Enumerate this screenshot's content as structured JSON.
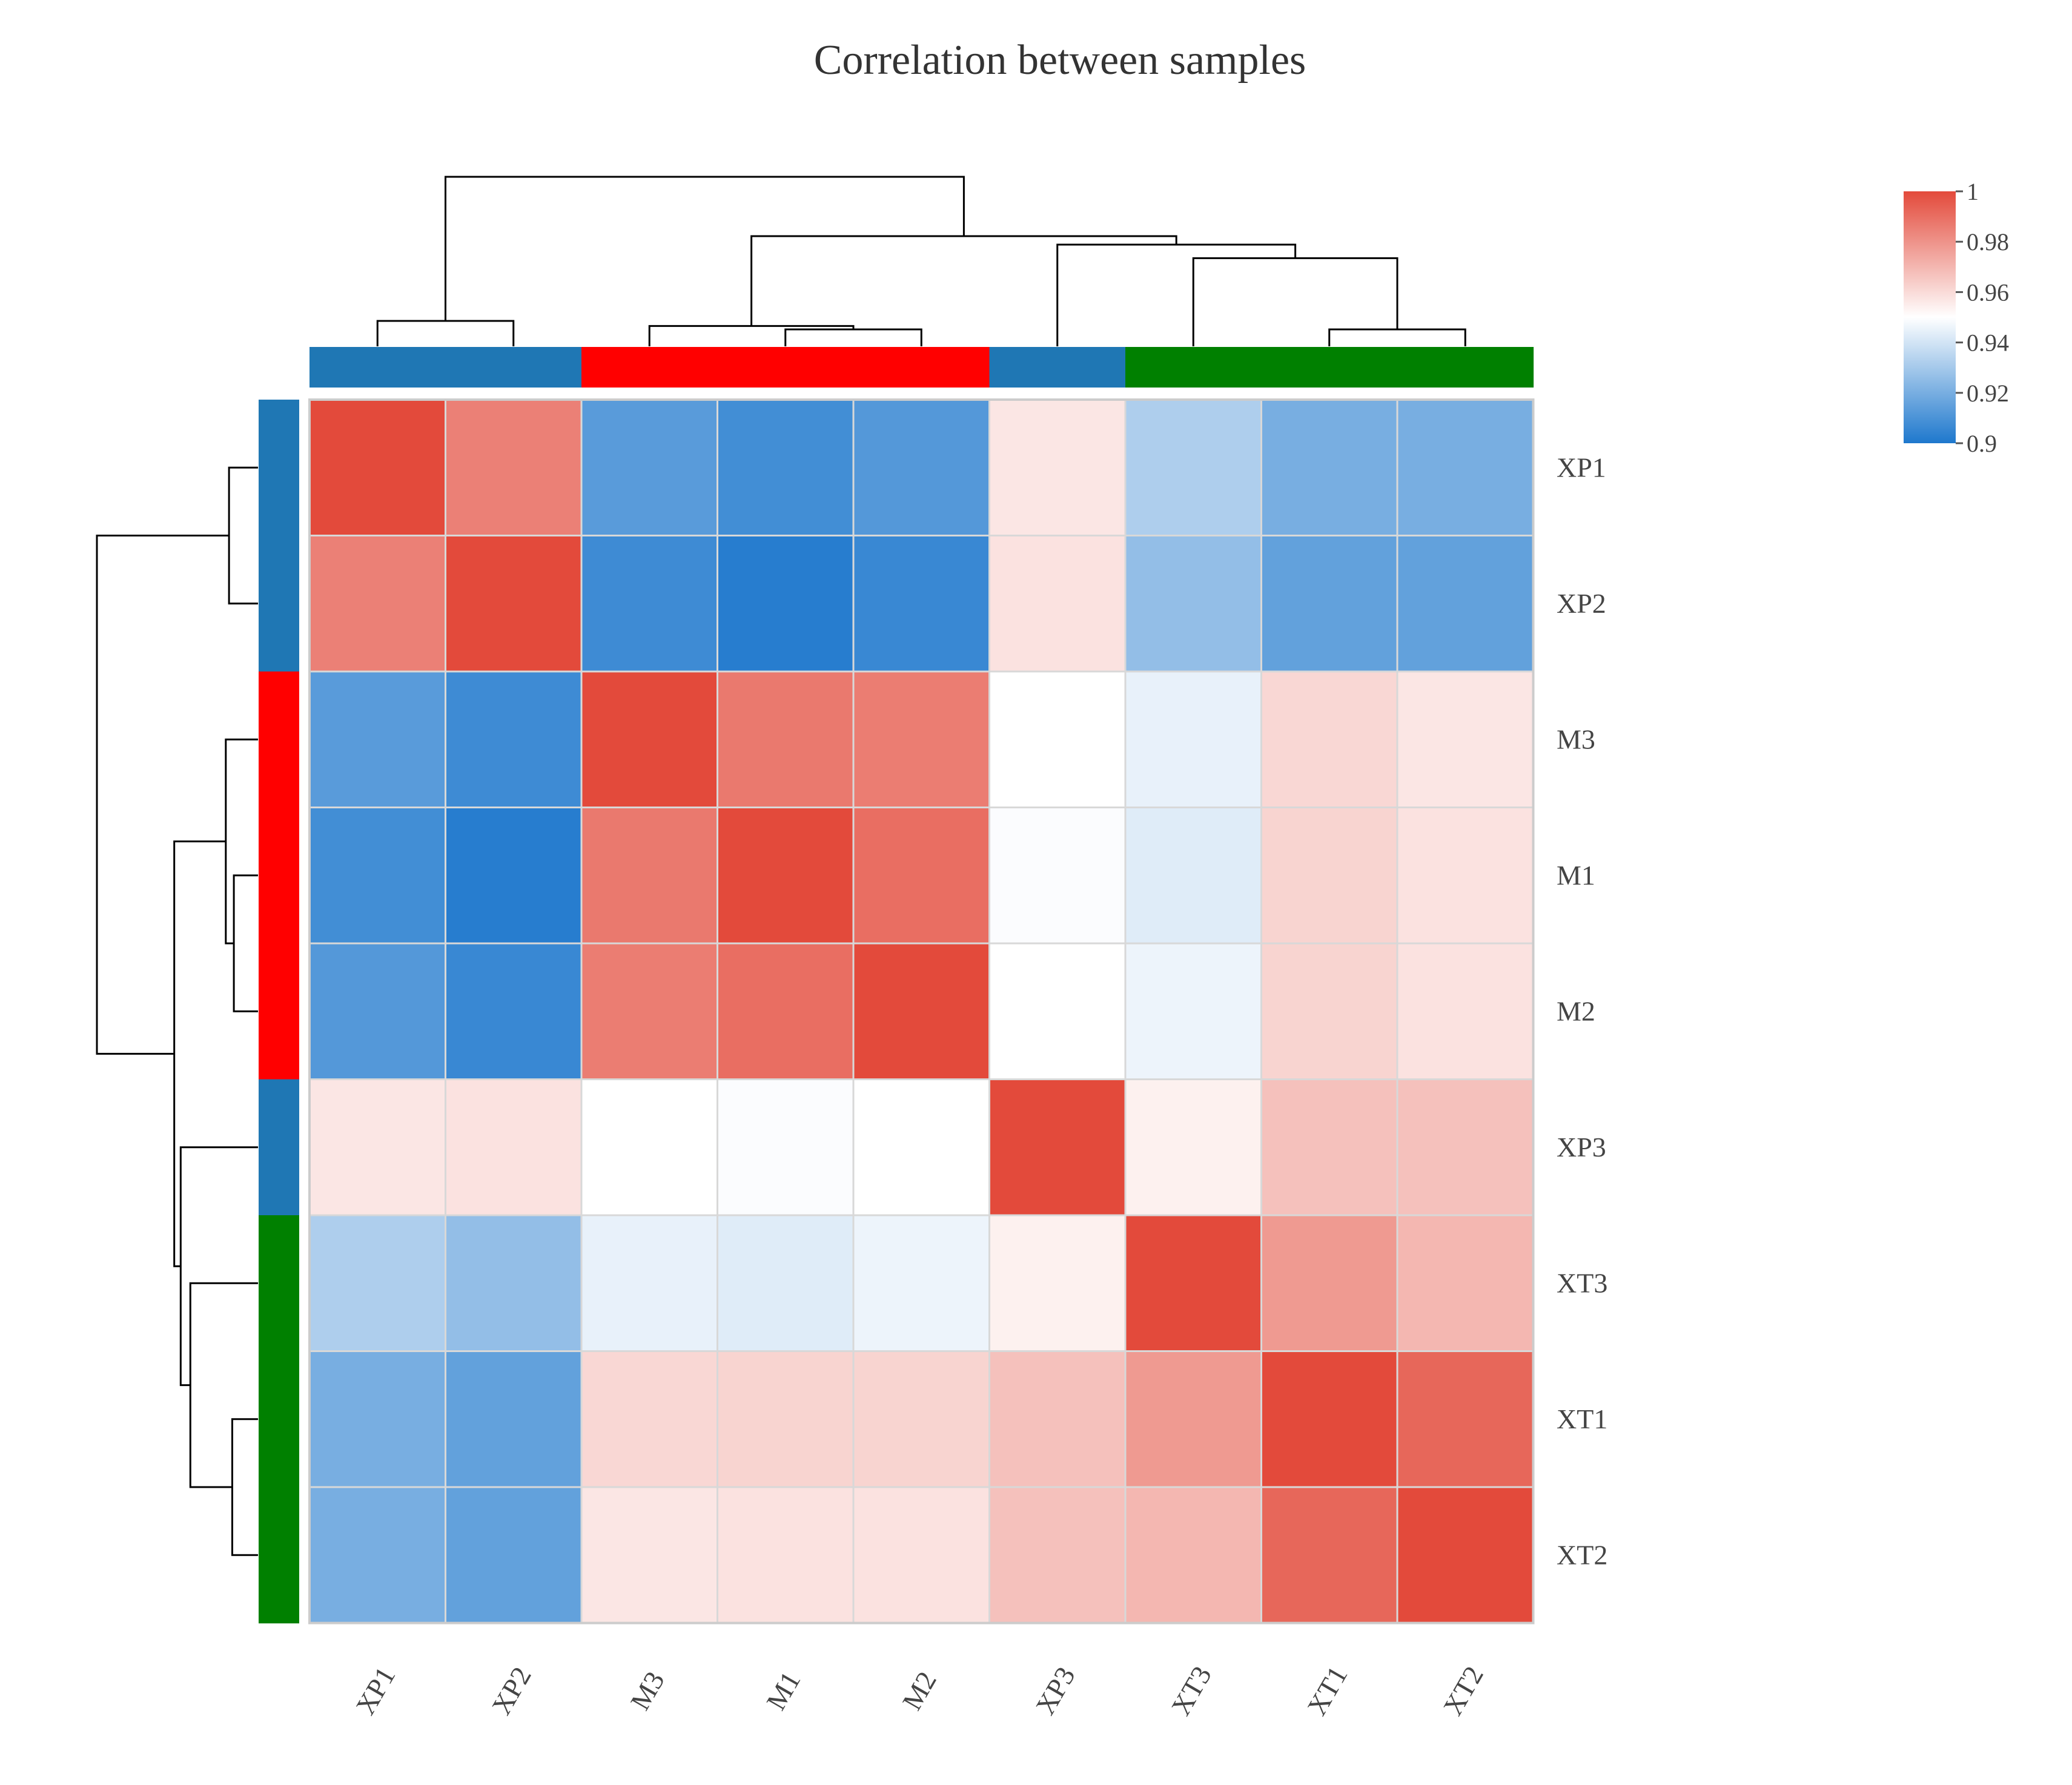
{
  "chart_data": {
    "type": "heatmap",
    "title": "Correlation between samples",
    "xlabel": "",
    "ylabel": "",
    "rows": [
      "XP1",
      "XP2",
      "M3",
      "M1",
      "M2",
      "XP3",
      "XT3",
      "XT1",
      "XT2"
    ],
    "columns": [
      "XP1",
      "XP2",
      "M3",
      "M1",
      "M2",
      "XP3",
      "XT3",
      "XT1",
      "XT2"
    ],
    "values": [
      [
        1.0,
        0.985,
        0.913,
        0.908,
        0.912,
        0.957,
        0.932,
        0.92,
        0.92
      ],
      [
        0.985,
        1.0,
        0.907,
        0.902,
        0.906,
        0.958,
        0.926,
        0.915,
        0.915
      ],
      [
        0.913,
        0.907,
        1.0,
        0.987,
        0.986,
        0.95,
        0.945,
        0.961,
        0.957
      ],
      [
        0.908,
        0.902,
        0.987,
        1.0,
        0.99,
        0.949,
        0.943,
        0.962,
        0.958
      ],
      [
        0.912,
        0.906,
        0.986,
        0.99,
        1.0,
        0.95,
        0.946,
        0.962,
        0.958
      ],
      [
        0.957,
        0.958,
        0.95,
        0.949,
        0.95,
        1.0,
        0.954,
        0.967,
        0.967
      ],
      [
        0.932,
        0.926,
        0.945,
        0.943,
        0.946,
        0.954,
        1.0,
        0.978,
        0.97
      ],
      [
        0.92,
        0.915,
        0.961,
        0.962,
        0.962,
        0.967,
        0.978,
        1.0,
        0.992
      ],
      [
        0.92,
        0.915,
        0.957,
        0.958,
        0.958,
        0.967,
        0.97,
        0.992,
        1.0
      ]
    ],
    "groups": [
      "XP",
      "XP",
      "M",
      "M",
      "M",
      "XP",
      "XT",
      "XT",
      "XT"
    ],
    "group_colors": {
      "XP": "#1f77b4",
      "M": "#ff0000",
      "XT": "#008000"
    },
    "colorscale": {
      "low": "#1e78cd",
      "mid": "#ffffff",
      "high": "#e34a3b",
      "min": 0.9,
      "mid_value": 0.95,
      "max": 1.0
    },
    "legend": {
      "placement": "top-right",
      "ticks": [
        {
          "value": 1.0,
          "label": "1"
        },
        {
          "value": 0.98,
          "label": "0.98"
        },
        {
          "value": 0.96,
          "label": "0.96"
        },
        {
          "value": 0.94,
          "label": "0.94"
        },
        {
          "value": 0.92,
          "label": "0.92"
        },
        {
          "value": 0.9,
          "label": "0.9"
        }
      ]
    },
    "column_dendrogram": [
      {
        "i": 0,
        "j": 1,
        "h": 0.15
      },
      {
        "i": 3,
        "j": 4,
        "h": 0.1
      },
      {
        "i": 2,
        "j": 10,
        "h": 0.12
      },
      {
        "i": 7,
        "j": 8,
        "h": 0.1
      },
      {
        "i": 6,
        "j": 12,
        "h": 0.52
      },
      {
        "i": 5,
        "j": 13,
        "h": 0.6
      },
      {
        "i": 11,
        "j": 14,
        "h": 0.65
      },
      {
        "i": 9,
        "j": 15,
        "h": 1.0
      }
    ],
    "row_dendrogram": [
      {
        "i": 0,
        "j": 1,
        "h": 0.18
      },
      {
        "i": 3,
        "j": 4,
        "h": 0.15
      },
      {
        "i": 2,
        "j": 10,
        "h": 0.2
      },
      {
        "i": 7,
        "j": 8,
        "h": 0.16
      },
      {
        "i": 6,
        "j": 12,
        "h": 0.42
      },
      {
        "i": 5,
        "j": 13,
        "h": 0.48
      },
      {
        "i": 11,
        "j": 14,
        "h": 0.52
      },
      {
        "i": 9,
        "j": 15,
        "h": 1.0
      }
    ]
  }
}
